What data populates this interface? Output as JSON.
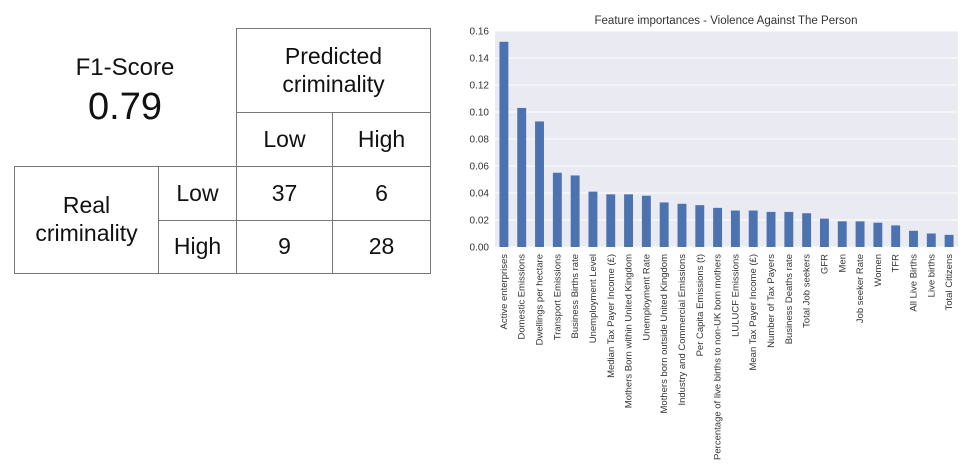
{
  "matrix": {
    "metric_label": "F1-Score",
    "metric_value": "0.79",
    "predicted_header": "Predicted criminality",
    "real_header": "Real criminality",
    "col_low": "Low",
    "col_high": "High",
    "row_low": "Low",
    "row_high": "High",
    "cells": {
      "low_low": "37",
      "low_high": "6",
      "high_low": "9",
      "high_high": "28"
    }
  },
  "chart_data": {
    "type": "bar",
    "title": "Feature importances - Violence Against The Person",
    "xlabel": "",
    "ylabel": "",
    "ylim": [
      0,
      0.16
    ],
    "yticks": [
      "0.00",
      "0.02",
      "0.04",
      "0.06",
      "0.08",
      "0.10",
      "0.12",
      "0.14",
      "0.16"
    ],
    "grid": true,
    "bar_color": "#4c72b0",
    "background_color": "#eaeaf2",
    "categories": [
      "Active enterprises",
      "Domestic Emissions",
      "Dwellings per hectare",
      "Transport Emissions",
      "Business Births rate",
      "Unemployment Level",
      "Median Tax Payer Income (£)",
      "Mothers Born within United Kingdom",
      "Unemployment Rate",
      "Mothers born outside United Kingdom",
      "Industry and Commercial Emissions",
      "Per Capita Emissions (t)",
      "Percentage of live births to non-UK born mothers",
      "LULUCF Emissions",
      "Mean Tax Payer Income (£)",
      "Number of Tax Payers",
      "Business Deaths rate",
      "Total Job seekers",
      "GFR",
      "Men",
      "Job seeker Rate",
      "Women",
      "TFR",
      "All Live Births",
      "Live births",
      "Total Citizens"
    ],
    "values": [
      0.152,
      0.103,
      0.093,
      0.055,
      0.053,
      0.041,
      0.039,
      0.039,
      0.038,
      0.033,
      0.032,
      0.031,
      0.029,
      0.027,
      0.027,
      0.026,
      0.026,
      0.025,
      0.021,
      0.019,
      0.019,
      0.018,
      0.016,
      0.012,
      0.01,
      0.009
    ]
  }
}
